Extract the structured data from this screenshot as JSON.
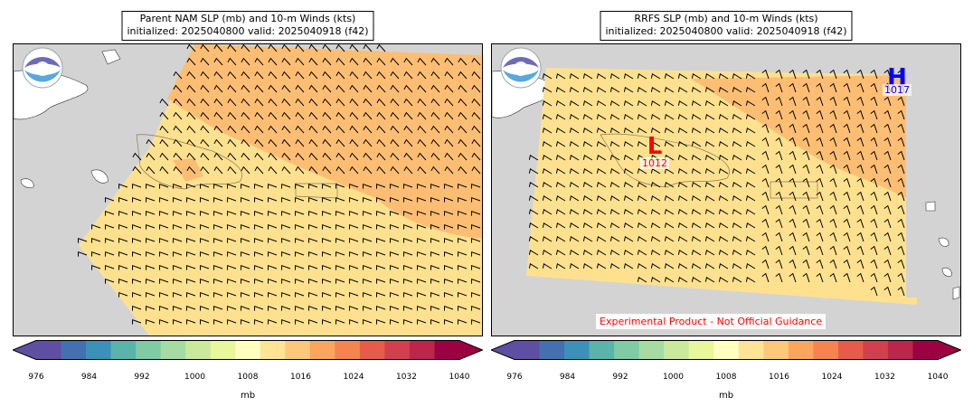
{
  "panels": [
    {
      "title_line1": "Parent NAM SLP (mb) and 10-m Winds (kts)",
      "title_line2": "initialized: 2025040800 valid: 2025040918 (f42)",
      "pressure_centers": [],
      "disclaimer": ""
    },
    {
      "title_line1": "RRFS SLP (mb) and 10-m Winds (kts)",
      "title_line2": "initialized: 2025040800 valid: 2025040918 (f42)",
      "pressure_centers": [
        {
          "letter": "H",
          "value": "1017",
          "color": "#0000ff"
        },
        {
          "letter": "L",
          "value": "1012",
          "color": "#ff0000"
        }
      ],
      "disclaimer": "Experimental Product - Not Official Guidance"
    }
  ],
  "colorbar": {
    "units": "mb",
    "ticks": [
      "976",
      "984",
      "992",
      "1000",
      "1008",
      "1016",
      "1024",
      "1032",
      "1040"
    ],
    "colors": [
      "#5e4fa2",
      "#4470b1",
      "#3b92b8",
      "#59b4aa",
      "#7ecba4",
      "#a6dba4",
      "#cae99d",
      "#e8f69c",
      "#fffebe",
      "#fee593",
      "#fdc877",
      "#fca55d",
      "#f7844e",
      "#e85b4a",
      "#d33f4e",
      "#be254a",
      "#9e0142"
    ],
    "under_color": "#5e4fa2",
    "over_color": "#9e0142"
  },
  "map_colors": {
    "ocean": "#d3d3d3",
    "land": "#ffffff",
    "slp_1008_1016": "#fee18f",
    "slp_1016_1024": "#fdbe74"
  },
  "icons": {
    "logo": "noaa-logo-icon"
  }
}
